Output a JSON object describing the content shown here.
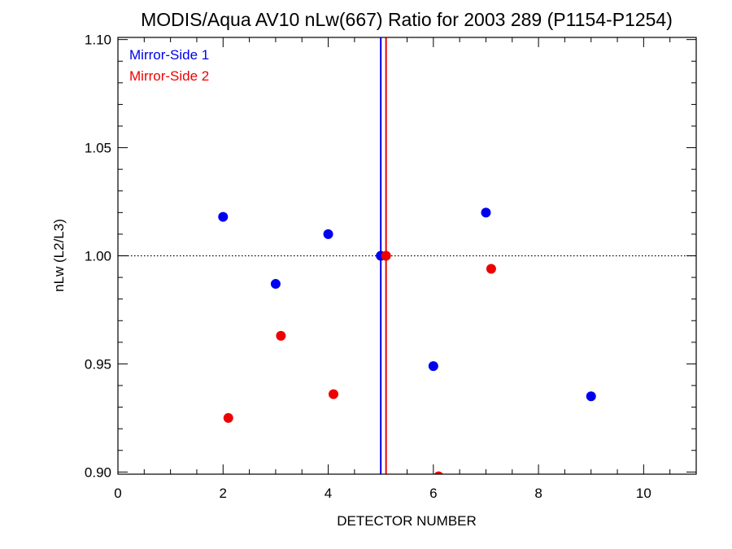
{
  "chart_data": {
    "type": "scatter",
    "title": "MODIS/Aqua AV10 nLw(667) Ratio for 2003 289 (P1154-P1254)",
    "xlabel": "DETECTOR NUMBER",
    "ylabel": "nLw (L2/L3)",
    "xlim": [
      0,
      11
    ],
    "ylim": [
      0.899,
      1.101
    ],
    "x_ticks": [
      "0",
      "2",
      "4",
      "6",
      "8",
      "10"
    ],
    "y_ticks": [
      "0.90",
      "0.95",
      "1.00",
      "1.05",
      "1.10"
    ],
    "reference_line_y": 1.0,
    "legend_position": "top-left",
    "series": [
      {
        "name": "Mirror-Side 1",
        "color": "#0000ee",
        "vline_x": 5.0,
        "points": [
          {
            "x": 2,
            "y": 1.018
          },
          {
            "x": 3,
            "y": 0.987
          },
          {
            "x": 4,
            "y": 1.01
          },
          {
            "x": 5,
            "y": 1.0
          },
          {
            "x": 6,
            "y": 0.949
          },
          {
            "x": 7,
            "y": 1.02
          },
          {
            "x": 9,
            "y": 0.935
          }
        ]
      },
      {
        "name": "Mirror-Side 2",
        "color": "#ee0000",
        "vline_x": 5.1,
        "points": [
          {
            "x": 2.1,
            "y": 0.925
          },
          {
            "x": 3.1,
            "y": 0.963
          },
          {
            "x": 4.1,
            "y": 0.936
          },
          {
            "x": 5.1,
            "y": 1.0
          },
          {
            "x": 6.1,
            "y": 0.898
          },
          {
            "x": 7.1,
            "y": 0.994
          }
        ]
      }
    ]
  }
}
